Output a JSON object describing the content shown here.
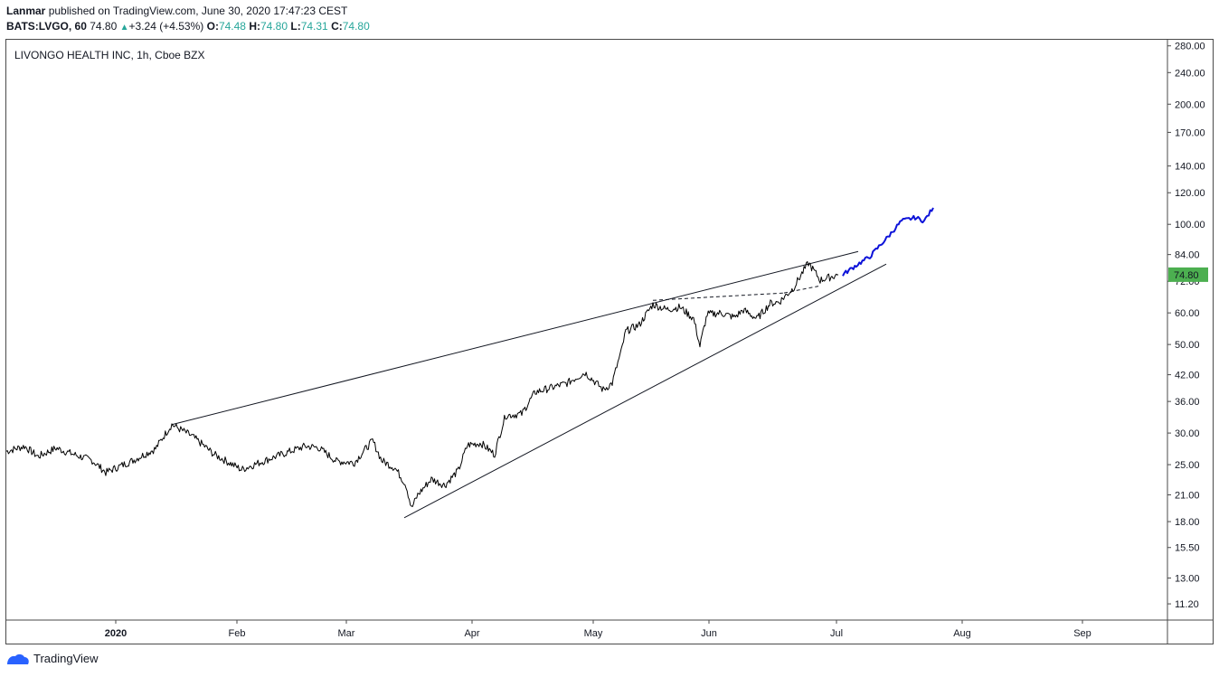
{
  "header": {
    "author": "Lanmar",
    "published_text": "published on TradingView.com, June 30, 2020 17:47:23 CEST",
    "symbol": "BATS:LVGO, 60",
    "last": "74.80",
    "change": "+3.24 (+4.53%)",
    "o_label": "O:",
    "o_value": "74.48",
    "h_label": "H:",
    "h_value": "74.80",
    "l_label": "L:",
    "l_value": "74.31",
    "c_label": "C:",
    "c_value": "74.80"
  },
  "symbol_title": "LIVONGO HEALTH INC, 1h, Cboe BZX",
  "footer": {
    "brand": "TradingView"
  },
  "colors": {
    "up": "#26a69a",
    "price_label_bg": "#4caf50",
    "projection": "#0d13d9",
    "candles": "#000000"
  },
  "chart_data": {
    "type": "line",
    "y_scale": "log",
    "ylim": [
      10.2,
      290
    ],
    "y_ticks": [
      "280.00",
      "240.00",
      "200.00",
      "170.00",
      "140.00",
      "120.00",
      "100.00",
      "84.00",
      "72.00",
      "60.00",
      "50.00",
      "42.00",
      "36.00",
      "30.00",
      "25.00",
      "21.00",
      "18.00",
      "15.50",
      "13.00",
      "11.20"
    ],
    "x_ticks": [
      "2020",
      "Feb",
      "Mar",
      "Apr",
      "May",
      "Jun",
      "Jul",
      "Aug",
      "Sep"
    ],
    "last_price_label": "74.80",
    "series": [
      {
        "values": [
          [
            0,
            27
          ],
          [
            20,
            27.8
          ],
          [
            35,
            26.2
          ],
          [
            55,
            27.5
          ],
          [
            75,
            26.5
          ],
          [
            95,
            25.6
          ],
          [
            110,
            23.9
          ],
          [
            140,
            25.6
          ],
          [
            165,
            27.4
          ],
          [
            183,
            31.5
          ],
          [
            205,
            29.5
          ],
          [
            230,
            26.5
          ],
          [
            260,
            24.3
          ],
          [
            300,
            26.3
          ],
          [
            330,
            27.8
          ],
          [
            345,
            27.6
          ],
          [
            365,
            25.5
          ],
          [
            385,
            25.3
          ],
          [
            405,
            28.7
          ],
          [
            415,
            25.6
          ],
          [
            430,
            24.5
          ],
          [
            442,
            22.2
          ],
          [
            448,
            19.4
          ],
          [
            455,
            21
          ],
          [
            470,
            23
          ],
          [
            485,
            22.2
          ],
          [
            500,
            24.2
          ],
          [
            510,
            28
          ],
          [
            525,
            28.3
          ],
          [
            540,
            26.5
          ],
          [
            552,
            33.2
          ],
          [
            570,
            33.5
          ],
          [
            585,
            38
          ],
          [
            600,
            38.8
          ],
          [
            620,
            40
          ],
          [
            640,
            42.5
          ],
          [
            660,
            38.5
          ],
          [
            670,
            40
          ],
          [
            680,
            48
          ],
          [
            685,
            54
          ],
          [
            700,
            56
          ],
          [
            715,
            63
          ],
          [
            730,
            61.2
          ],
          [
            745,
            62
          ],
          [
            760,
            58
          ],
          [
            767,
            49.5
          ],
          [
            775,
            59.5
          ],
          [
            790,
            60
          ],
          [
            805,
            58.5
          ],
          [
            815,
            61
          ],
          [
            830,
            58
          ],
          [
            845,
            63.4
          ],
          [
            855,
            64
          ],
          [
            870,
            69
          ],
          [
            887,
            80
          ],
          [
            900,
            72.5
          ],
          [
            920,
            74.8
          ]
        ]
      },
      {
        "values": [
          [
            925,
            74.8
          ],
          [
            940,
            79
          ],
          [
            955,
            83
          ],
          [
            965,
            88
          ],
          [
            975,
            93
          ],
          [
            990,
            102
          ],
          [
            1005,
            104
          ],
          [
            1015,
            102
          ],
          [
            1025,
            110
          ]
        ]
      }
    ],
    "annotations": [
      {
        "from": [
          183,
          31.5
        ],
        "to": [
          942,
          85.5
        ]
      },
      {
        "from": [
          440,
          18.4
        ],
        "to": [
          973,
          79.5
        ]
      },
      {
        "from": [
          715,
          64.5
        ],
        "to": [
          860,
          67.3
        ]
      },
      {
        "from": [
          860,
          67.3
        ],
        "to": [
          898,
          70
        ]
      }
    ]
  }
}
